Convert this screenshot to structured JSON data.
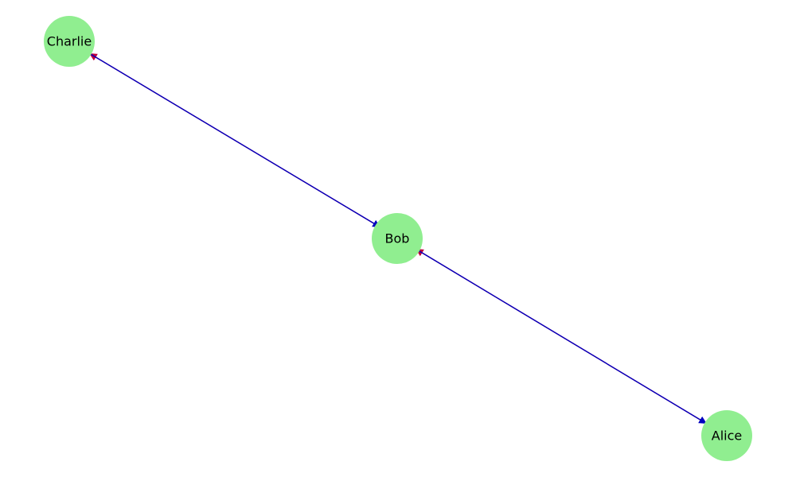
{
  "graph": {
    "node_color": "#90ee90",
    "nodes": [
      {
        "id": "charlie",
        "label": "Charlie"
      },
      {
        "id": "bob",
        "label": "Bob"
      },
      {
        "id": "alice",
        "label": "Alice"
      }
    ],
    "edges": [
      {
        "from": "bob",
        "to": "charlie",
        "color": "#c0003c"
      },
      {
        "from": "charlie",
        "to": "bob",
        "color": "#0000c0"
      },
      {
        "from": "bob",
        "to": "alice",
        "color": "#0000c0"
      },
      {
        "from": "alice",
        "to": "bob",
        "color": "#c0003c"
      }
    ]
  }
}
